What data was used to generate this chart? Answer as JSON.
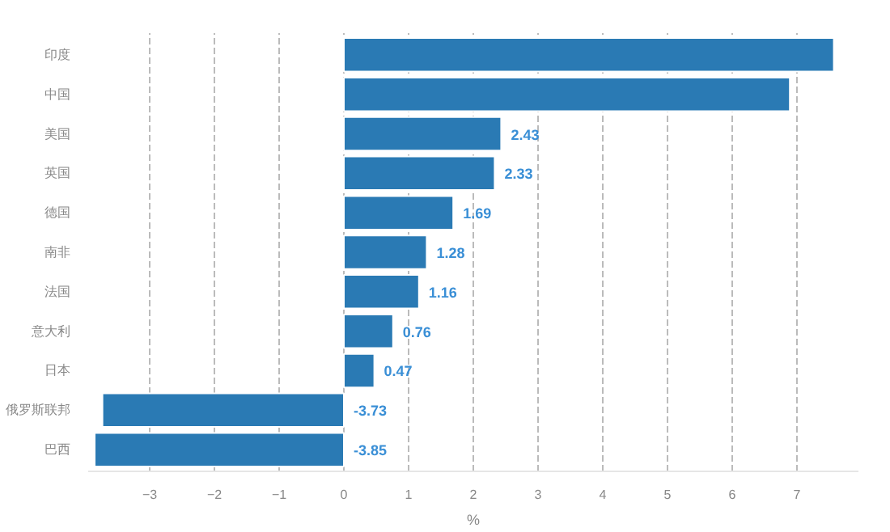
{
  "chart_data": {
    "type": "bar",
    "orientation": "horizontal",
    "xlabel": "%",
    "categories": [
      "印度",
      "中国",
      "美国",
      "英国",
      "德国",
      "南非",
      "法国",
      "意大利",
      "日本",
      "俄罗斯联邦",
      "巴西"
    ],
    "values": [
      7.57,
      6.89,
      2.43,
      2.33,
      1.69,
      1.28,
      1.16,
      0.76,
      0.47,
      -3.73,
      -3.85
    ],
    "value_labels": [
      null,
      null,
      "2.43",
      "2.33",
      "1.69",
      "1.28",
      "1.16",
      "0.76",
      "0.47",
      "-3.73",
      "-3.85"
    ],
    "color": "#2a7ab4",
    "xlim": [
      -3.95,
      7.95
    ],
    "xticks": [
      -3,
      -2,
      -1,
      0,
      1,
      2,
      3,
      4,
      5,
      6,
      7
    ],
    "grid": "x"
  }
}
